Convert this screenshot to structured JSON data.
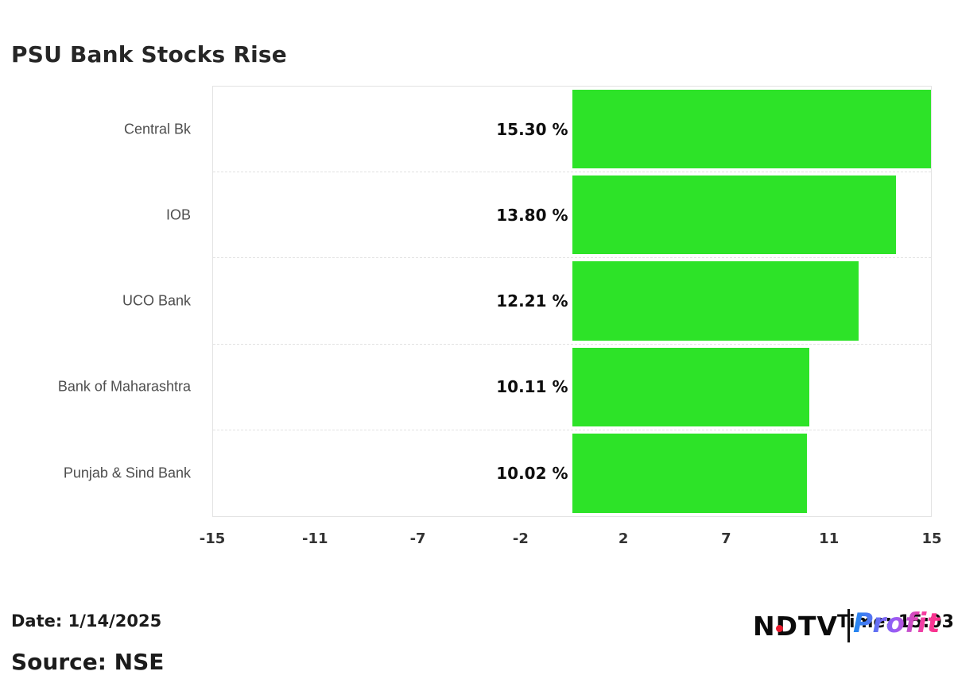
{
  "title": "PSU Bank Stocks Rise",
  "chart_data": {
    "type": "bar",
    "orientation": "horizontal",
    "title": "PSU Bank Stocks Rise",
    "categories": [
      "Central Bk",
      "IOB",
      "UCO Bank",
      "Bank of Maharashtra",
      "Punjab & Sind Bank"
    ],
    "values": [
      15.3,
      13.8,
      12.21,
      10.11,
      10.02
    ],
    "value_labels": [
      "15.30 %",
      "13.80 %",
      "12.21 %",
      "10.11 %",
      "10.02 %"
    ],
    "unit": "%",
    "x_ticks": [
      "-15",
      "-11",
      "-7",
      "-2",
      "2",
      "7",
      "11",
      "15"
    ],
    "xlim": [
      -15.3,
      15.3
    ],
    "bar_color": "#2de328",
    "bar_base_value": 0,
    "grid": "dashed row separators, outer plot border, no vertical gridlines",
    "legend": "none"
  },
  "footer": {
    "date_label": "Date: 1/14/2025",
    "source_label": "Source: NSE",
    "time_label": "Time: 15:03"
  },
  "logo": {
    "ndtv": "NDTV",
    "profit": "Profit",
    "dot_color": "#e8192c",
    "gradient": [
      "#1e88f0",
      "#9a5cf5",
      "#fb2e86"
    ]
  },
  "colors": {
    "bar_green": "#2de328",
    "plot_border": "#e3e3e3",
    "category_text": "#4e4e4e",
    "tick_text": "#333333"
  }
}
